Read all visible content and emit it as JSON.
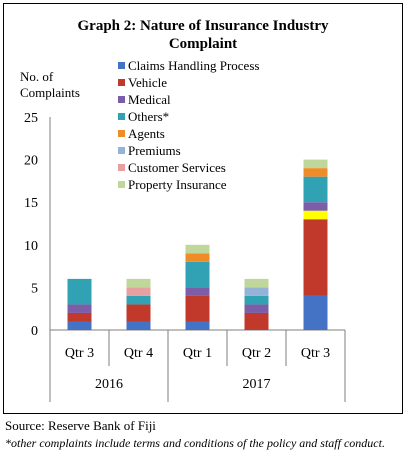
{
  "chart_data": {
    "type": "bar",
    "stacked": true,
    "title": "Graph 2: Nature of Insurance Industry Complaint",
    "title_lines": [
      "Graph 2: Nature of Insurance Industry",
      "Complaint"
    ],
    "ylabel_lines": [
      "No. of",
      "Complaints"
    ],
    "xlabel": "",
    "ylim": [
      0,
      25
    ],
    "yticks": [
      0,
      5,
      10,
      15,
      20,
      25
    ],
    "categories": [
      "Qtr 3",
      "Qtr 4",
      "Qtr 1",
      "Qtr 2",
      "Qtr 3"
    ],
    "year_groups": [
      {
        "label": "2016",
        "span": 2
      },
      {
        "label": "2017",
        "span": 3
      }
    ],
    "legend_position": "top",
    "series": [
      {
        "name": "Claims Handling Process",
        "color": "#4472C4",
        "values": [
          1,
          1,
          1,
          0,
          4
        ]
      },
      {
        "name": "Vehicle",
        "color": "#C0392B",
        "values": [
          1,
          2,
          3,
          2,
          9
        ]
      },
      {
        "name": "Medical",
        "color": "#7B5EA7",
        "values": [
          1,
          0,
          1,
          1,
          1
        ]
      },
      {
        "name": "Others*",
        "color": "#31A2B3",
        "values": [
          3,
          1,
          3,
          1,
          3
        ]
      },
      {
        "name": "Agents",
        "color": "#F08C28",
        "values": [
          0,
          0,
          1,
          0,
          1
        ]
      },
      {
        "name": "Premiums",
        "color": "#95B3D7",
        "values": [
          0,
          0,
          0,
          1,
          0
        ]
      },
      {
        "name": "Customer Services",
        "color": "#E6A0A0",
        "values": [
          0,
          1,
          0,
          0,
          0
        ]
      },
      {
        "name": "Property Insurance",
        "color": "#BFD79B",
        "values": [
          0,
          1,
          1,
          1,
          1
        ]
      }
    ],
    "unlabeled_segments": [
      {
        "category_index": 4,
        "after_series": 1,
        "value": 1,
        "color": "#FFFF00"
      }
    ]
  },
  "source_text": "Source: Reserve Bank of Fiji",
  "note_text": "*other complaints include terms and conditions of the policy and staff conduct."
}
